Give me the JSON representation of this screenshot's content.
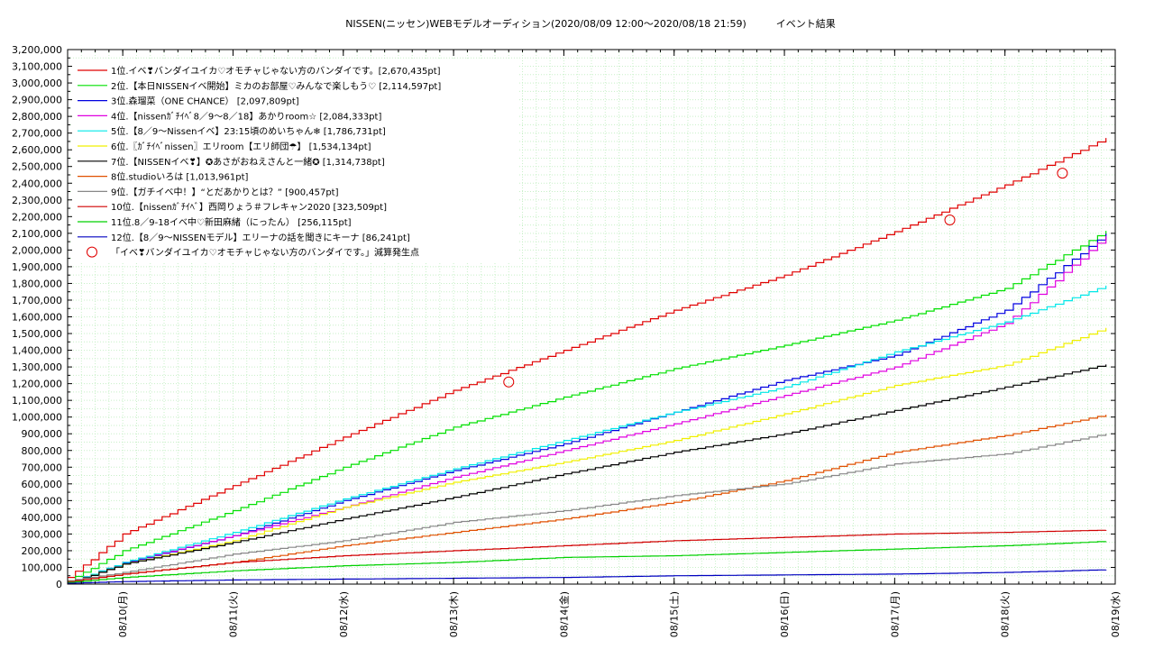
{
  "chart_data": {
    "type": "line",
    "title": "NISSEN(ニッセン)WEBモデルオーディション(2020/08/09 12:00～2020/08/18 21:59)　　　イベント結果",
    "xlabel": "",
    "ylabel": "",
    "x_start": "2020-08-09 12:00",
    "x_end": "2020-08-19 00:00",
    "ylim": [
      0,
      3200000
    ],
    "grid": true,
    "legend_position": "top-left",
    "y_ticks": [
      "0",
      "100,000",
      "200,000",
      "300,000",
      "400,000",
      "500,000",
      "600,000",
      "700,000",
      "800,000",
      "900,000",
      "1,000,000",
      "1,100,000",
      "1,200,000",
      "1,300,000",
      "1,400,000",
      "1,500,000",
      "1,600,000",
      "1,700,000",
      "1,800,000",
      "1,900,000",
      "2,000,000",
      "2,100,000",
      "2,200,000",
      "2,300,000",
      "2,400,000",
      "2,500,000",
      "2,600,000",
      "2,700,000",
      "2,800,000",
      "2,900,000",
      "3,000,000",
      "3,100,000",
      "3,200,000"
    ],
    "x_ticks": [
      {
        "x": "2020-08-10 00:00",
        "label": "08/10(月)"
      },
      {
        "x": "2020-08-11 00:00",
        "label": "08/11(火)"
      },
      {
        "x": "2020-08-12 00:00",
        "label": "08/12(水)"
      },
      {
        "x": "2020-08-13 00:00",
        "label": "08/13(木)"
      },
      {
        "x": "2020-08-14 00:00",
        "label": "08/14(金)"
      },
      {
        "x": "2020-08-15 00:00",
        "label": "08/15(土)"
      },
      {
        "x": "2020-08-16 00:00",
        "label": "08/16(日)"
      },
      {
        "x": "2020-08-17 00:00",
        "label": "08/17(月)"
      },
      {
        "x": "2020-08-18 00:00",
        "label": "08/18(火)"
      },
      {
        "x": "2020-08-19 00:00",
        "label": "08/19(水)"
      }
    ],
    "x_points": [
      "2020-08-09 12:00",
      "2020-08-10 00:00",
      "2020-08-11 00:00",
      "2020-08-12 00:00",
      "2020-08-13 00:00",
      "2020-08-14 00:00",
      "2020-08-15 00:00",
      "2020-08-16 00:00",
      "2020-08-17 00:00",
      "2020-08-18 00:00",
      "2020-08-18 21:59"
    ],
    "series": [
      {
        "name": "1位.イベ❣バンダイユイカ♡オモチャじゃない方のバンダイです。[2,670,435pt]",
        "color": "#e00000",
        "values": [
          40000,
          300000,
          590000,
          880000,
          1160000,
          1400000,
          1640000,
          1850000,
          2110000,
          2390000,
          2670435
        ]
      },
      {
        "name": "2位.【本日NISSENイベ開始】ミカのお部屋♡みんなで楽しもう♡ [2,114,597pt]",
        "color": "#00e000",
        "values": [
          20000,
          200000,
          440000,
          700000,
          940000,
          1120000,
          1290000,
          1430000,
          1580000,
          1770000,
          2114597
        ]
      },
      {
        "name": "3位.森瑠菜（ONE CHANCE） [2,097,809pt]",
        "color": "#0000e0",
        "values": [
          10000,
          125000,
          290000,
          500000,
          680000,
          840000,
          1030000,
          1220000,
          1370000,
          1640000,
          2097809
        ]
      },
      {
        "name": "4位.【nissenｶﾞﾁｲﾍﾞ8／9〜8／18】あかりroom☆ [2,084,333pt]",
        "color": "#e000e0",
        "values": [
          10000,
          130000,
          290000,
          460000,
          640000,
          800000,
          960000,
          1130000,
          1300000,
          1560000,
          2084333
        ]
      },
      {
        "name": "5位.【8／9〜Nissenイベ】23:15頃のめいちゃん❄ [1,786,731pt]",
        "color": "#00e8e8",
        "values": [
          10000,
          130000,
          310000,
          510000,
          690000,
          860000,
          1030000,
          1180000,
          1390000,
          1570000,
          1786731
        ]
      },
      {
        "name": "6位.〖ｶﾞﾁｲﾍﾞnissen〗エリroom【エリ師団☂】 [1,534,134pt]",
        "color": "#f0f000",
        "values": [
          5000,
          120000,
          260000,
          460000,
          610000,
          730000,
          860000,
          1020000,
          1190000,
          1310000,
          1534134
        ]
      },
      {
        "name": "7位.【NISSENイベ❣】✪あさがおねえさんと一緒✪ [1,314,738pt]",
        "color": "#000000",
        "values": [
          5000,
          120000,
          250000,
          390000,
          520000,
          660000,
          790000,
          900000,
          1040000,
          1180000,
          1314738
        ]
      },
      {
        "name": "8位.studioいろは [1,013,961pt]",
        "color": "#e05000",
        "values": [
          15000,
          60000,
          130000,
          230000,
          310000,
          390000,
          490000,
          620000,
          790000,
          890000,
          1013961
        ]
      },
      {
        "name": "9位.【ガチイベ中！】“とだあかりとは？” [900,457pt]",
        "color": "#888888",
        "values": [
          20000,
          70000,
          180000,
          260000,
          370000,
          440000,
          530000,
          600000,
          720000,
          780000,
          900457
        ]
      },
      {
        "name": "10位.【nissenｶﾞﾁｲﾍﾞ】西岡りょう＃フレキャン2020 [323,509pt]",
        "color": "#d00000",
        "values": [
          15000,
          60000,
          130000,
          170000,
          200000,
          230000,
          260000,
          280000,
          300000,
          310000,
          323509
        ]
      },
      {
        "name": "11位.8／9-18イベ中♡新田麻緒（にったん） [256,115pt]",
        "color": "#00d000",
        "values": [
          10000,
          40000,
          80000,
          110000,
          130000,
          160000,
          170000,
          190000,
          210000,
          230000,
          256115
        ]
      },
      {
        "name": "12位.【8／9〜NISSENモデル】エリーナの話を聞きにキーナ [86,241pt]",
        "color": "#0000c0",
        "values": [
          5000,
          15000,
          25000,
          30000,
          35000,
          40000,
          50000,
          55000,
          60000,
          70000,
          86241
        ]
      }
    ],
    "deduction_series_name": "「イベ❣バンダイユイカ♡オモチャじゃない方のバンダイです。」減算発生点",
    "deduction_points": [
      {
        "x": "2020-08-13 12:00",
        "y": 1210000
      },
      {
        "x": "2020-08-17 12:00",
        "y": 2180000
      },
      {
        "x": "2020-08-18 12:30",
        "y": 2460000
      }
    ]
  }
}
